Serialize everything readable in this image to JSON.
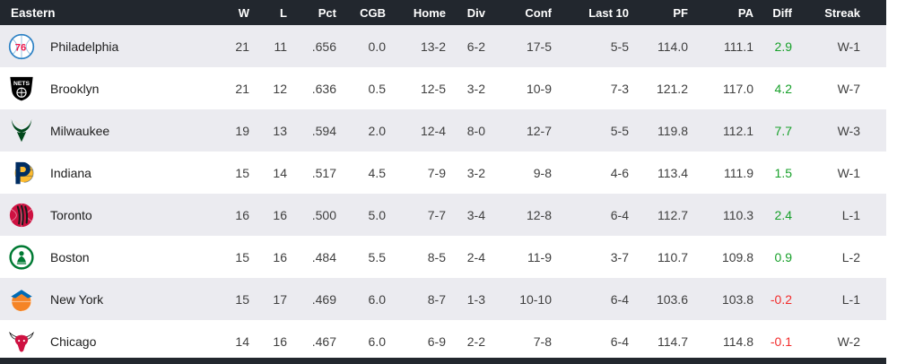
{
  "table": {
    "title": "Eastern",
    "columns": [
      "Eastern",
      "W",
      "L",
      "Pct",
      "CGB",
      "Home",
      "Div",
      "Conf",
      "Last 10",
      "PF",
      "PA",
      "Diff",
      "Streak"
    ],
    "stat_keys": [
      "w",
      "l",
      "pct",
      "cgb",
      "home",
      "div",
      "conf",
      "last10",
      "pf",
      "pa",
      "diff",
      "streak"
    ],
    "rows": [
      {
        "name": "Philadelphia",
        "logo": "philadelphia-76ers-logo",
        "logo_kind": "sixers",
        "colors": {
          "primary": "#2b80c4",
          "secondary": "#ed174c"
        },
        "stats": {
          "w": "21",
          "l": "11",
          "pct": ".656",
          "cgb": "0.0",
          "home": "13-2",
          "div": "6-2",
          "conf": "17-5",
          "last10": "5-5",
          "pf": "114.0",
          "pa": "111.1",
          "diff": "2.9",
          "streak": "W-1"
        }
      },
      {
        "name": "Brooklyn",
        "logo": "brooklyn-nets-logo",
        "logo_kind": "nets",
        "colors": {
          "primary": "#000000",
          "secondary": "#ffffff"
        },
        "stats": {
          "w": "21",
          "l": "12",
          "pct": ".636",
          "cgb": "0.5",
          "home": "12-5",
          "div": "3-2",
          "conf": "10-9",
          "last10": "7-3",
          "pf": "121.2",
          "pa": "117.0",
          "diff": "4.2",
          "streak": "W-7"
        }
      },
      {
        "name": "Milwaukee",
        "logo": "milwaukee-bucks-logo",
        "logo_kind": "bucks",
        "colors": {
          "primary": "#00471b",
          "secondary": "#eee1c6"
        },
        "stats": {
          "w": "19",
          "l": "13",
          "pct": ".594",
          "cgb": "2.0",
          "home": "12-4",
          "div": "8-0",
          "conf": "12-7",
          "last10": "5-5",
          "pf": "119.8",
          "pa": "112.1",
          "diff": "7.7",
          "streak": "W-3"
        }
      },
      {
        "name": "Indiana",
        "logo": "indiana-pacers-logo",
        "logo_kind": "pacers",
        "colors": {
          "primary": "#002d62",
          "secondary": "#fdbb30"
        },
        "stats": {
          "w": "15",
          "l": "14",
          "pct": ".517",
          "cgb": "4.5",
          "home": "7-9",
          "div": "3-2",
          "conf": "9-8",
          "last10": "4-6",
          "pf": "113.4",
          "pa": "111.9",
          "diff": "1.5",
          "streak": "W-1"
        }
      },
      {
        "name": "Toronto",
        "logo": "toronto-raptors-logo",
        "logo_kind": "raptors",
        "colors": {
          "primary": "#ce1141",
          "secondary": "#ffffff"
        },
        "stats": {
          "w": "16",
          "l": "16",
          "pct": ".500",
          "cgb": "5.0",
          "home": "7-7",
          "div": "3-4",
          "conf": "12-8",
          "last10": "6-4",
          "pf": "112.7",
          "pa": "110.3",
          "diff": "2.4",
          "streak": "L-1"
        }
      },
      {
        "name": "Boston",
        "logo": "boston-celtics-logo",
        "logo_kind": "celtics",
        "colors": {
          "primary": "#007a33",
          "secondary": "#ffffff"
        },
        "stats": {
          "w": "15",
          "l": "16",
          "pct": ".484",
          "cgb": "5.5",
          "home": "8-5",
          "div": "2-4",
          "conf": "11-9",
          "last10": "3-7",
          "pf": "110.7",
          "pa": "109.8",
          "diff": "0.9",
          "streak": "L-2"
        }
      },
      {
        "name": "New York",
        "logo": "new-york-knicks-logo",
        "logo_kind": "knicks",
        "colors": {
          "primary": "#f58426",
          "secondary": "#006bb6"
        },
        "stats": {
          "w": "15",
          "l": "17",
          "pct": ".469",
          "cgb": "6.0",
          "home": "8-7",
          "div": "1-3",
          "conf": "10-10",
          "last10": "6-4",
          "pf": "103.6",
          "pa": "103.8",
          "diff": "-0.2",
          "streak": "L-1"
        }
      },
      {
        "name": "Chicago",
        "logo": "chicago-bulls-logo",
        "logo_kind": "bulls",
        "colors": {
          "primary": "#ce1141",
          "secondary": "#000000"
        },
        "stats": {
          "w": "14",
          "l": "16",
          "pct": ".467",
          "cgb": "6.0",
          "home": "6-9",
          "div": "2-2",
          "conf": "7-8",
          "last10": "6-4",
          "pf": "114.7",
          "pa": "114.8",
          "diff": "-0.1",
          "streak": "W-2"
        }
      }
    ]
  },
  "colors": {
    "header_bg": "#22272e",
    "row_alt_bg": "#ebebf0",
    "row_bg": "#ffffff",
    "diff_positive": "#17a02a",
    "diff_negative": "#f22b2b"
  }
}
